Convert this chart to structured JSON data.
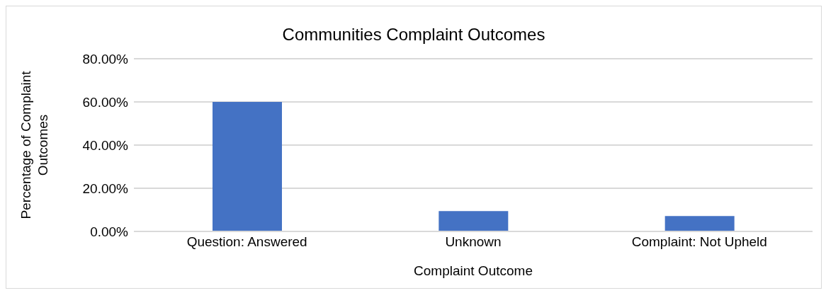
{
  "chart_data": {
    "type": "bar",
    "title": "Communities Complaint Outcomes",
    "xlabel": "Complaint Outcome",
    "ylabel": "Percentage of Complaint Outcomes",
    "categories": [
      "Question: Answered",
      "Unknown",
      "Complaint: Not Upheld"
    ],
    "values": [
      60,
      9.4,
      7.1
    ],
    "color": "#4472c4",
    "ylim": [
      0,
      80
    ],
    "yticks": [
      {
        "value": 0,
        "label": "0.00%"
      },
      {
        "value": 20,
        "label": "20.00%"
      },
      {
        "value": 40,
        "label": "40.00%"
      },
      {
        "value": 60,
        "label": "60.00%"
      },
      {
        "value": 80,
        "label": "80.00%"
      }
    ],
    "grid": "y"
  }
}
